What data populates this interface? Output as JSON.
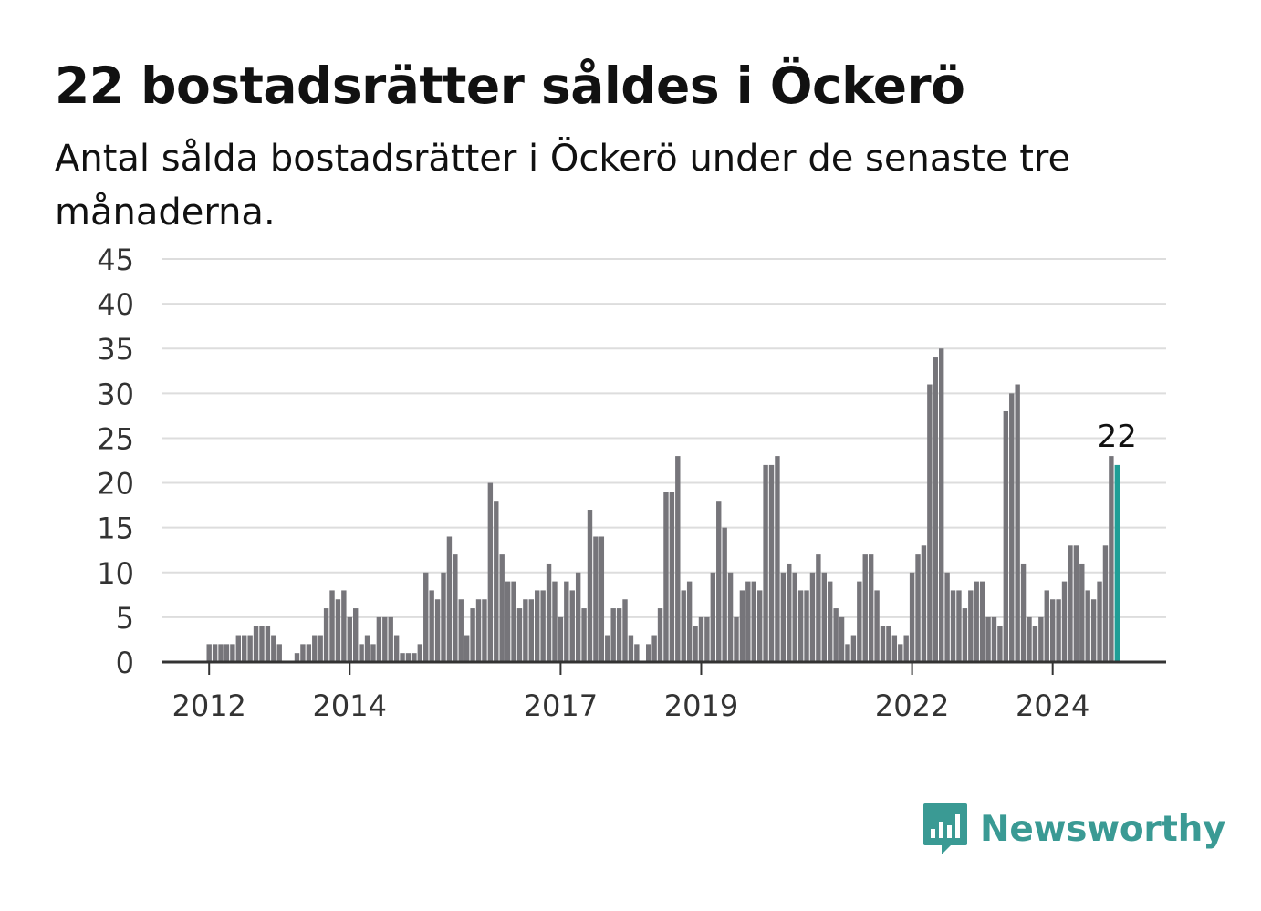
{
  "title": "22 bostadsrätter såldes i Öckerö",
  "subtitle": "Antal sålda bostadsrätter i Öckerö under de senaste tre månaderna.",
  "brand": "Newsworthy",
  "brand_logo_icon": "newsworthy-logo-icon",
  "colors": {
    "bar": "#76757a",
    "highlight": "#1f9e96",
    "grid": "#dddddd",
    "axis": "#333333",
    "brand": "#3a9a94"
  },
  "chart_data": {
    "type": "bar",
    "title": "22 bostadsrätter såldes i Öckerö",
    "xlabel": "",
    "ylabel": "",
    "ylim": [
      0,
      45
    ],
    "yticks": [
      0,
      5,
      10,
      15,
      20,
      25,
      30,
      35,
      40,
      45
    ],
    "xticks": [
      "2012",
      "2014",
      "2017",
      "2019",
      "2022",
      "2024"
    ],
    "grid": true,
    "highlight_label": "22",
    "values": [
      2,
      2,
      2,
      2,
      2,
      3,
      3,
      3,
      4,
      4,
      4,
      3,
      2,
      0,
      0,
      1,
      2,
      2,
      3,
      3,
      6,
      8,
      7,
      8,
      5,
      6,
      2,
      3,
      2,
      5,
      5,
      5,
      3,
      1,
      1,
      1,
      2,
      10,
      8,
      7,
      10,
      14,
      12,
      7,
      3,
      6,
      7,
      7,
      20,
      18,
      12,
      9,
      9,
      6,
      7,
      7,
      8,
      8,
      11,
      9,
      5,
      9,
      8,
      10,
      6,
      17,
      14,
      14,
      3,
      6,
      6,
      7,
      3,
      2,
      0,
      2,
      3,
      6,
      19,
      19,
      23,
      8,
      9,
      4,
      5,
      5,
      10,
      18,
      15,
      10,
      5,
      8,
      9,
      9,
      8,
      22,
      22,
      23,
      10,
      11,
      10,
      8,
      8,
      10,
      12,
      10,
      9,
      6,
      5,
      2,
      3,
      9,
      12,
      12,
      8,
      4,
      4,
      3,
      2,
      3,
      10,
      12,
      13,
      31,
      34,
      35,
      10,
      8,
      8,
      6,
      8,
      9,
      9,
      5,
      5,
      4,
      28,
      30,
      31,
      11,
      5,
      4,
      5,
      8,
      7,
      7,
      9,
      13,
      13,
      11,
      8,
      7,
      9,
      13,
      23,
      22
    ]
  }
}
